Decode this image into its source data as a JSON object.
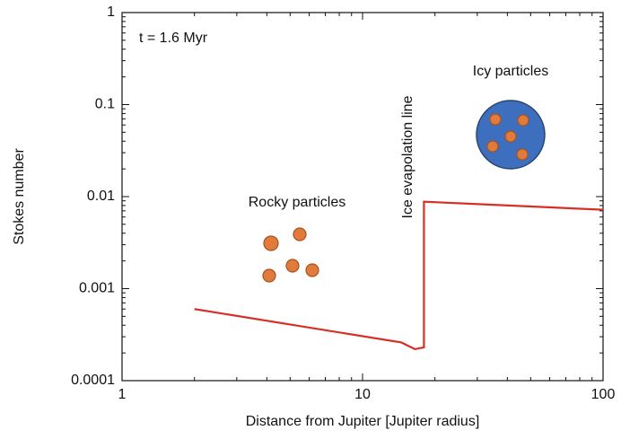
{
  "chart_data": {
    "type": "line",
    "x_label": "Distance from Jupiter [Jupiter radius]",
    "y_label": "Stokes number",
    "x_log": true,
    "y_log": true,
    "xlim": [
      1,
      100
    ],
    "ylim": [
      0.0001,
      1
    ],
    "xticks": [
      1,
      10,
      100
    ],
    "yticks": [
      0.0001,
      0.001,
      0.01,
      0.1,
      1
    ],
    "annotations": [
      "t = 1.6 Myr",
      "Rocky particles",
      "Icy particles",
      "Ice evapolation line"
    ],
    "series": [
      {
        "color": "#d62f26",
        "x": [
          2,
          14.5,
          16.5,
          18,
          18,
          100
        ],
        "values": [
          0.0006,
          0.00026,
          0.00022,
          0.00023,
          0.0088,
          0.0072
        ]
      }
    ]
  }
}
